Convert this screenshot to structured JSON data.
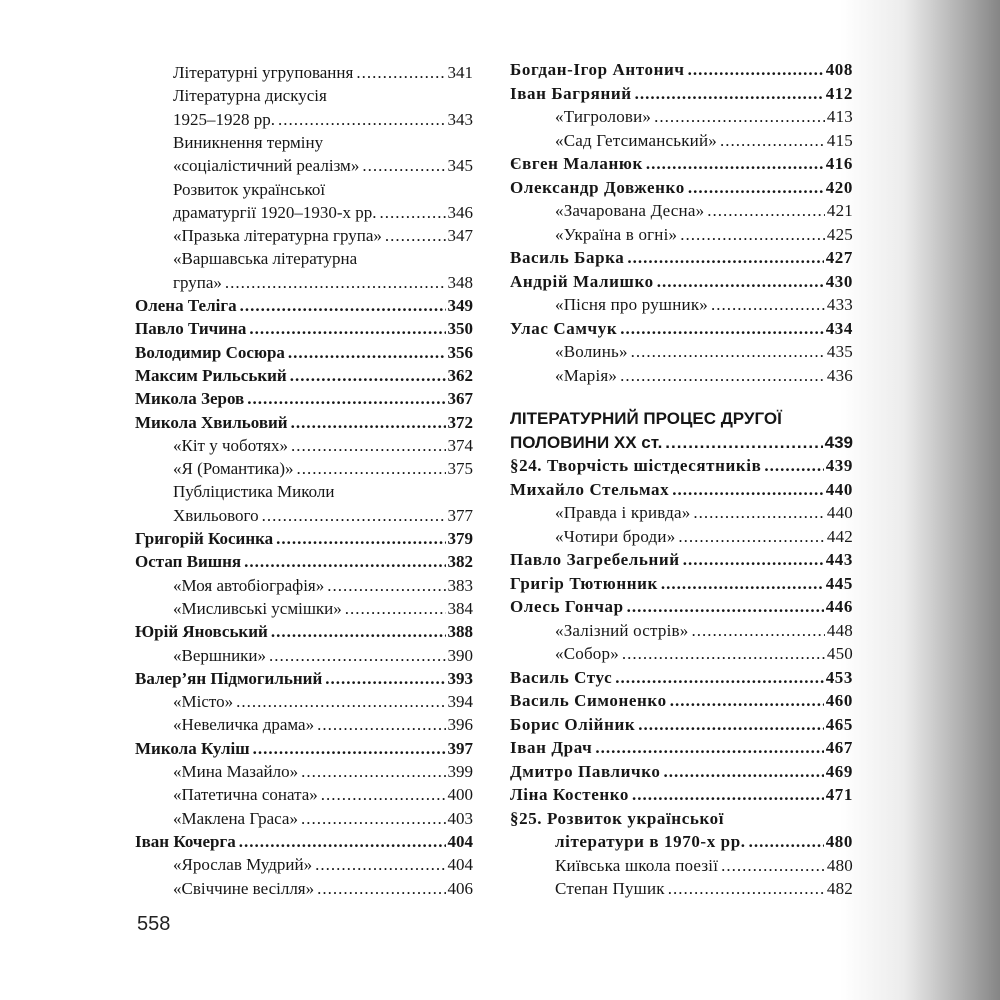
{
  "page_number": "558",
  "left_column": [
    {
      "text": "Літературні угруповання",
      "page": "341",
      "style": "sub"
    },
    {
      "text": "Літературна дискусія",
      "page": "",
      "style": "sub"
    },
    {
      "text": "1925–1928 рр.",
      "page": "343",
      "style": "sub"
    },
    {
      "text": "Виникнення терміну",
      "page": "",
      "style": "sub"
    },
    {
      "text": "«соціалістичний реалізм»",
      "page": "345",
      "style": "sub"
    },
    {
      "text": "Розвиток української",
      "page": "",
      "style": "sub"
    },
    {
      "text": "драматургії 1920–1930-х рр.",
      "page": "346",
      "style": "sub"
    },
    {
      "text": "«Празька літературна група»",
      "page": "347",
      "style": "sub"
    },
    {
      "text": "«Варшавська літературна",
      "page": "",
      "style": "sub"
    },
    {
      "text": "група»",
      "page": "348",
      "style": "sub"
    },
    {
      "text": "Олена Теліга",
      "page": "349",
      "style": "bold"
    },
    {
      "text": "Павло Тичина",
      "page": "350",
      "style": "bold"
    },
    {
      "text": "Володимир Сосюра",
      "page": "356",
      "style": "bold"
    },
    {
      "text": "Максим Рильський",
      "page": "362",
      "style": "bold"
    },
    {
      "text": "Микола Зеров",
      "page": "367",
      "style": "bold"
    },
    {
      "text": "Микола Хвильовий",
      "page": "372",
      "style": "bold"
    },
    {
      "text": "«Кіт у чоботях»",
      "page": "374",
      "style": "sub"
    },
    {
      "text": "«Я (Романтика)»",
      "page": "375",
      "style": "sub"
    },
    {
      "text": "Публіцистика Миколи",
      "page": "",
      "style": "sub"
    },
    {
      "text": "Хвильового",
      "page": "377",
      "style": "sub"
    },
    {
      "text": "Григорій Косинка",
      "page": "379",
      "style": "bold"
    },
    {
      "text": "Остап Вишня",
      "page": "382",
      "style": "bold"
    },
    {
      "text": "«Моя автобіографія»",
      "page": "383",
      "style": "sub"
    },
    {
      "text": "«Мисливські усмішки»",
      "page": "384",
      "style": "sub"
    },
    {
      "text": "Юрій Яновський",
      "page": "388",
      "style": "bold"
    },
    {
      "text": "«Вершники»",
      "page": "390",
      "style": "sub"
    },
    {
      "text": "Валер’ян Підмогильний",
      "page": "393",
      "style": "bold"
    },
    {
      "text": "«Місто»",
      "page": "394",
      "style": "sub"
    },
    {
      "text": "«Невеличка драма»",
      "page": "396",
      "style": "sub"
    },
    {
      "text": "Микола Куліш",
      "page": "397",
      "style": "bold"
    },
    {
      "text": "«Мина Мазайло»",
      "page": "399",
      "style": "sub"
    },
    {
      "text": "«Патетична соната»",
      "page": "400",
      "style": "sub"
    },
    {
      "text": "«Маклена Граса»",
      "page": "403",
      "style": "sub"
    },
    {
      "text": "Іван Кочерга",
      "page": "404",
      "style": "bold"
    },
    {
      "text": "«Ярослав Мудрий»",
      "page": "404",
      "style": "sub"
    },
    {
      "text": "«Свіччине весілля»",
      "page": "406",
      "style": "sub"
    }
  ],
  "right_column_top": [
    {
      "text": "Богдан-Ігор Антонич",
      "page": "408",
      "style": "bold"
    },
    {
      "text": "Іван Багряний",
      "page": "412",
      "style": "bold"
    },
    {
      "text": "«Тигролови»",
      "page": "413",
      "style": "sub"
    },
    {
      "text": "«Сад Гетсиманський»",
      "page": "415",
      "style": "sub"
    },
    {
      "text": "Євген Маланюк",
      "page": "416",
      "style": "bold"
    },
    {
      "text": "Олександр Довженко",
      "page": "420",
      "style": "bold"
    },
    {
      "text": "«Зачарована Десна»",
      "page": "421",
      "style": "sub"
    },
    {
      "text": "«Україна в огні»",
      "page": "425",
      "style": "sub"
    },
    {
      "text": "Василь Барка",
      "page": "427",
      "style": "bold"
    },
    {
      "text": "Андрій Малишко",
      "page": "430",
      "style": "bold"
    },
    {
      "text": "«Пісня про рушник»",
      "page": "433",
      "style": "sub"
    },
    {
      "text": "Улас Самчук",
      "page": "434",
      "style": "bold"
    },
    {
      "text": "«Волинь»",
      "page": "435",
      "style": "sub"
    },
    {
      "text": "«Марія»",
      "page": "436",
      "style": "sub"
    }
  ],
  "section_heading": [
    {
      "text": "ЛІТЕРАТУРНИЙ ПРОЦЕС ДРУГОЇ",
      "page": "",
      "style": "head"
    },
    {
      "text": "ПОЛОВИНИ ХХ ст.",
      "page": "439",
      "style": "head"
    }
  ],
  "right_column_bottom": [
    {
      "text": "§24. Творчість шістдесятників",
      "page": "439",
      "style": "bold"
    },
    {
      "text": "Михайло Стельмах",
      "page": "440",
      "style": "bold"
    },
    {
      "text": "«Правда і кривда»",
      "page": "440",
      "style": "sub"
    },
    {
      "text": "«Чотири броди»",
      "page": "442",
      "style": "sub"
    },
    {
      "text": "Павло Загребельний",
      "page": "443",
      "style": "bold"
    },
    {
      "text": "Григір Тютюнник",
      "page": "445",
      "style": "bold"
    },
    {
      "text": "Олесь Гончар",
      "page": "446",
      "style": "bold"
    },
    {
      "text": "«Залізний острів»",
      "page": "448",
      "style": "sub"
    },
    {
      "text": "«Собор»",
      "page": "450",
      "style": "sub"
    },
    {
      "text": "Василь Стус",
      "page": "453",
      "style": "bold"
    },
    {
      "text": "Василь Симоненко",
      "page": "460",
      "style": "bold"
    },
    {
      "text": "Борис Олійник",
      "page": "465",
      "style": "bold"
    },
    {
      "text": "Іван Драч",
      "page": "467",
      "style": "bold"
    },
    {
      "text": "Дмитро Павличко",
      "page": "469",
      "style": "bold"
    },
    {
      "text": "Ліна Костенко",
      "page": "471",
      "style": "bold"
    },
    {
      "text": "§25. Розвиток української",
      "page": "",
      "style": "bold"
    },
    {
      "text": "літератури в 1970-х рр.",
      "page": "480",
      "style": "subbold"
    },
    {
      "text": "Київська школа поезії",
      "page": "480",
      "style": "sub"
    },
    {
      "text": "Степан Пушик",
      "page": "482",
      "style": "sub"
    }
  ]
}
